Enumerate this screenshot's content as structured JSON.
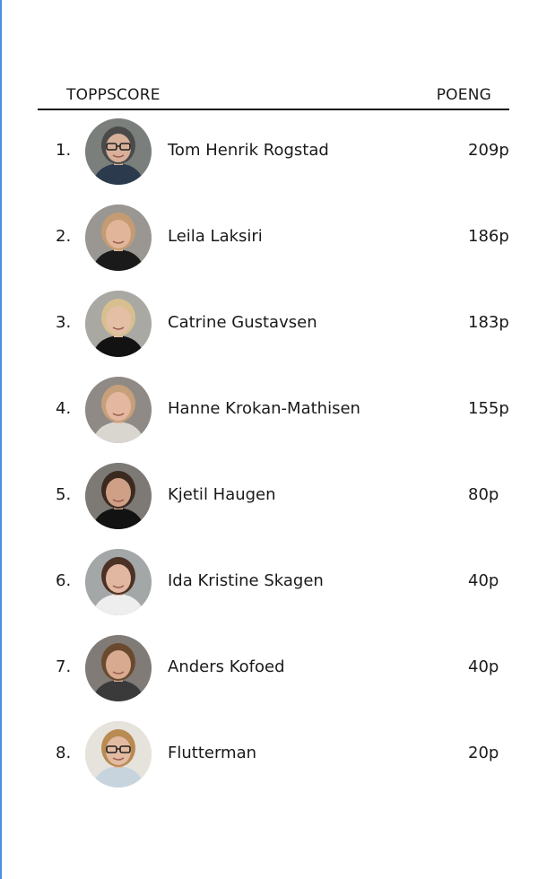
{
  "header": {
    "title": "TOPPSCORE",
    "points_label": "POENG"
  },
  "players": [
    {
      "rank": "1.",
      "name": "Tom Henrik Rogstad",
      "score": "209p",
      "avatar": {
        "bg": "#7a7f7c",
        "hair": "#4a4a4a",
        "skin": "#d8b09a",
        "shirt": "#2b3b4d",
        "glasses": true
      }
    },
    {
      "rank": "2.",
      "name": "Leila Laksiri",
      "score": "186p",
      "avatar": {
        "bg": "#9a9792",
        "hair": "#c49b72",
        "skin": "#e1b59a",
        "shirt": "#1a1a1a",
        "glasses": false
      }
    },
    {
      "rank": "3.",
      "name": "Catrine Gustavsen",
      "score": "183p",
      "avatar": {
        "bg": "#a9a8a2",
        "hair": "#d7bf8f",
        "skin": "#e4bfa5",
        "shirt": "#121212",
        "glasses": false
      }
    },
    {
      "rank": "4.",
      "name": "Hanne Krokan-Mathisen",
      "score": "155p",
      "avatar": {
        "bg": "#8f8a86",
        "hair": "#c6a07a",
        "skin": "#e3b7a0",
        "shirt": "#d9d6d0",
        "glasses": false
      }
    },
    {
      "rank": "5.",
      "name": "Kjetil Haugen",
      "score": "80p",
      "avatar": {
        "bg": "#7d7a76",
        "hair": "#3b2a1f",
        "skin": "#cf9f86",
        "shirt": "#121212",
        "glasses": false
      }
    },
    {
      "rank": "6.",
      "name": "Ida Kristine Skagen",
      "score": "40p",
      "avatar": {
        "bg": "#a4a7a8",
        "hair": "#4b3225",
        "skin": "#e2b7a1",
        "shirt": "#eeeeee",
        "glasses": false
      }
    },
    {
      "rank": "7.",
      "name": "Anders Kofoed",
      "score": "40p",
      "avatar": {
        "bg": "#807b77",
        "hair": "#6a4a2e",
        "skin": "#d8ab91",
        "shirt": "#3a3a3a",
        "glasses": false
      }
    },
    {
      "rank": "8.",
      "name": "Flutterman",
      "score": "20p",
      "avatar": {
        "bg": "#e6e3dd",
        "hair": "#b98a52",
        "skin": "#e2bba2",
        "shirt": "#c7d4de",
        "glasses": true
      }
    }
  ]
}
